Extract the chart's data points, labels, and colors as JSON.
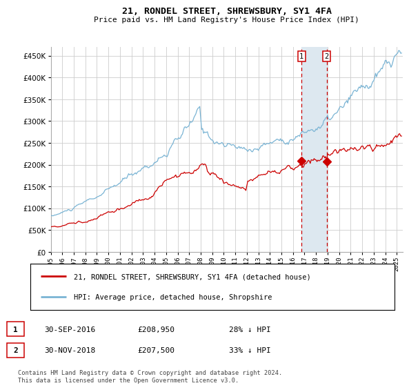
{
  "title": "21, RONDEL STREET, SHREWSBURY, SY1 4FA",
  "subtitle": "Price paid vs. HM Land Registry's House Price Index (HPI)",
  "legend_line1": "21, RONDEL STREET, SHREWSBURY, SY1 4FA (detached house)",
  "legend_line2": "HPI: Average price, detached house, Shropshire",
  "marker1_date": 2016.75,
  "marker2_date": 2018.917,
  "marker1_value": 208950,
  "marker2_value": 207500,
  "footer": "Contains HM Land Registry data © Crown copyright and database right 2024.\nThis data is licensed under the Open Government Licence v3.0.",
  "hpi_color": "#7ab4d4",
  "price_color": "#cc0000",
  "grid_color": "#cccccc",
  "span_color": "#dde8f0",
  "ylim": [
    0,
    470000
  ],
  "xlim_start": 1995.0,
  "xlim_end": 2025.5,
  "yticks": [
    0,
    50000,
    100000,
    150000,
    200000,
    250000,
    300000,
    350000,
    400000,
    450000
  ],
  "xticks": [
    1995,
    1996,
    1997,
    1998,
    1999,
    2000,
    2001,
    2002,
    2003,
    2004,
    2005,
    2006,
    2007,
    2008,
    2009,
    2010,
    2011,
    2012,
    2013,
    2014,
    2015,
    2016,
    2017,
    2018,
    2019,
    2020,
    2021,
    2022,
    2023,
    2024,
    2025
  ]
}
